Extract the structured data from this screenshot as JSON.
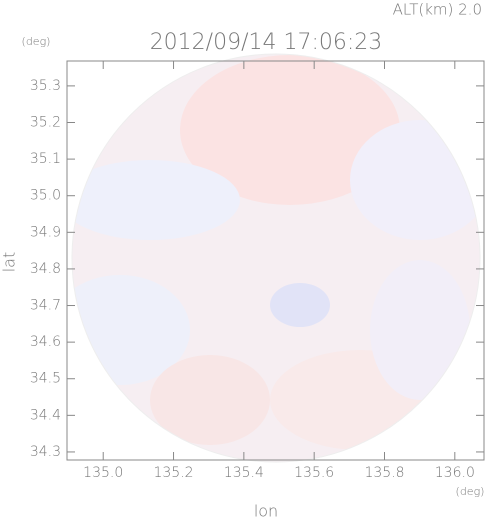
{
  "chart_data": {
    "type": "map",
    "altitude_label": "ALT(km) 2.0",
    "title": "2012/09/14 17:06:23",
    "x_label": "lon",
    "y_label": "lat",
    "x_unit": "(deg)",
    "y_unit": "(deg)",
    "xlim": [
      134.897,
      136.083
    ],
    "ylim": [
      34.278,
      35.368
    ],
    "xticks": [
      {
        "value": 135.0,
        "label": "135.0"
      },
      135.2,
      135.4,
      135.6,
      135.8,
      {
        "value": 136.0,
        "label": "136.0"
      }
    ],
    "yticks": [
      34.3,
      34.4,
      34.5,
      34.6,
      34.7,
      34.8,
      34.9,
      {
        "value": 35.0,
        "label": "35.0"
      },
      35.1,
      35.2,
      35.3
    ]
  }
}
